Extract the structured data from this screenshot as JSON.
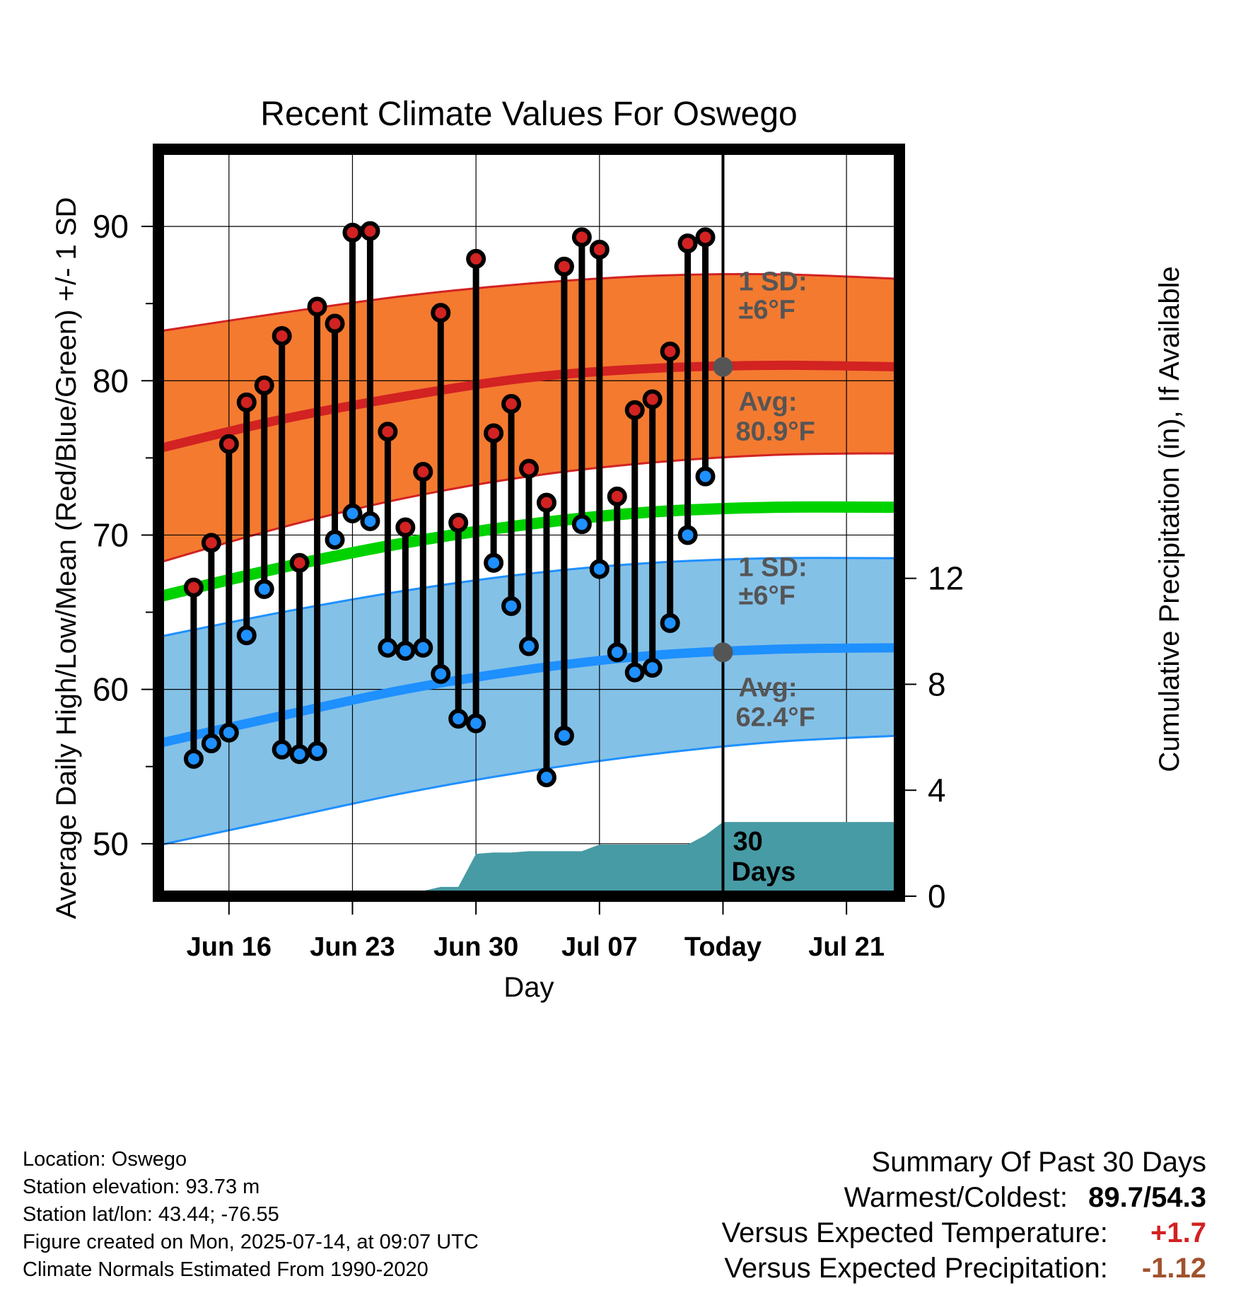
{
  "chart_data": {
    "type": "line",
    "title": "Recent Climate Values For Oswego",
    "xlabel": "Day",
    "ylabel_left": "Average Daily High/Low/Mean (Red/Blue/Green) +/- 1 SD",
    "ylabel_right": "Cumulative Precipitation (in), If Available",
    "ylim_left": [
      46.6,
      95.0
    ],
    "ylim_right": [
      0,
      28.2
    ],
    "yticks_left": [
      50,
      60,
      70,
      80,
      90
    ],
    "yticks_right": [
      0,
      4,
      8,
      12
    ],
    "xlim": [
      "2025-06-12",
      "2025-07-24"
    ],
    "xticks": [
      {
        "date": "2025-06-16",
        "label": "Jun 16"
      },
      {
        "date": "2025-06-23",
        "label": "Jun 23"
      },
      {
        "date": "2025-06-30",
        "label": "Jun 30"
      },
      {
        "date": "2025-07-07",
        "label": "Jul 07"
      },
      {
        "date": "2025-07-14",
        "label": "Today"
      },
      {
        "date": "2025-07-21",
        "label": "Jul 21"
      }
    ],
    "today": "2025-07-14",
    "grid": true,
    "daily": {
      "dates": [
        "2025-06-14",
        "2025-06-15",
        "2025-06-16",
        "2025-06-17",
        "2025-06-18",
        "2025-06-19",
        "2025-06-20",
        "2025-06-21",
        "2025-06-22",
        "2025-06-23",
        "2025-06-24",
        "2025-06-25",
        "2025-06-26",
        "2025-06-27",
        "2025-06-28",
        "2025-06-29",
        "2025-06-30",
        "2025-07-01",
        "2025-07-02",
        "2025-07-03",
        "2025-07-04",
        "2025-07-05",
        "2025-07-06",
        "2025-07-07",
        "2025-07-08",
        "2025-07-09",
        "2025-07-10",
        "2025-07-11",
        "2025-07-12",
        "2025-07-13"
      ],
      "high": [
        66.6,
        69.5,
        75.9,
        78.6,
        79.7,
        82.9,
        68.2,
        84.8,
        83.7,
        89.6,
        89.7,
        76.7,
        70.5,
        74.1,
        84.4,
        70.8,
        87.9,
        76.6,
        78.5,
        74.3,
        72.1,
        87.4,
        89.3,
        88.5,
        72.5,
        78.1,
        78.8,
        81.9,
        88.9,
        89.3
      ],
      "low": [
        55.5,
        56.5,
        57.2,
        63.5,
        66.5,
        56.1,
        55.8,
        56.0,
        69.7,
        71.4,
        70.9,
        62.7,
        62.5,
        62.7,
        61.0,
        58.1,
        57.8,
        68.2,
        65.4,
        62.8,
        54.3,
        57.0,
        70.7,
        67.8,
        62.4,
        61.1,
        61.4,
        64.3,
        70.0,
        73.8
      ]
    },
    "normals": {
      "dates": [
        "2025-06-12",
        "2025-06-19",
        "2025-06-26",
        "2025-07-03",
        "2025-07-10",
        "2025-07-17",
        "2025-07-24"
      ],
      "avg_high": [
        75.6,
        77.5,
        79.0,
        80.2,
        80.8,
        81.0,
        80.9
      ],
      "avg_low": [
        56.5,
        58.3,
        60.0,
        61.3,
        62.2,
        62.6,
        62.7
      ],
      "avg_mean": [
        66.0,
        67.9,
        69.5,
        70.7,
        71.5,
        71.8,
        71.8
      ],
      "high_sd_upper": [
        83.2,
        84.4,
        85.5,
        86.3,
        86.8,
        86.9,
        86.6
      ],
      "high_sd_lower": [
        68.2,
        70.5,
        72.4,
        73.8,
        74.7,
        75.2,
        75.3
      ],
      "low_sd_upper": [
        63.4,
        65.0,
        66.4,
        67.5,
        68.2,
        68.5,
        68.5
      ],
      "low_sd_lower": [
        49.9,
        51.6,
        53.3,
        54.7,
        55.8,
        56.6,
        57.0
      ]
    },
    "precip_cumulative": {
      "dates": [
        "2025-06-12",
        "2025-06-24",
        "2025-06-25",
        "2025-06-26",
        "2025-06-27",
        "2025-06-28",
        "2025-06-29",
        "2025-06-30",
        "2025-07-01",
        "2025-07-02",
        "2025-07-03",
        "2025-07-04",
        "2025-07-05",
        "2025-07-06",
        "2025-07-07",
        "2025-07-08",
        "2025-07-09",
        "2025-07-10",
        "2025-07-11",
        "2025-07-12",
        "2025-07-13",
        "2025-07-14",
        "2025-07-24"
      ],
      "values": [
        0,
        0,
        0.05,
        0.15,
        0.2,
        0.35,
        0.35,
        1.6,
        1.65,
        1.65,
        1.7,
        1.7,
        1.7,
        1.7,
        1.95,
        1.95,
        1.95,
        1.95,
        1.95,
        1.95,
        2.3,
        2.8,
        2.8
      ]
    },
    "annotations": {
      "high_sd_label": "1 SD:",
      "high_sd_value": "±6°F",
      "high_avg_label": "Avg:",
      "high_avg_value": "80.9°F",
      "low_sd_label": "1 SD:",
      "low_sd_value": "±6°F",
      "low_avg_label": "Avg:",
      "low_avg_value": "62.4°F",
      "days_count": "30",
      "days_label": "Days",
      "today_high_avg": 80.9,
      "today_low_avg": 62.4
    },
    "colors": {
      "high_band": "#f47a30",
      "high_line": "#d22222",
      "low_band": "#84c1e7",
      "low_line": "#1e90ff",
      "mean_line": "#00d200",
      "precip_fill": "#479ba5",
      "high_marker": "#d22222",
      "low_marker": "#1e90ff",
      "annotation_text": "#555555"
    }
  },
  "info": {
    "location": "Location: Oswego",
    "elevation": "Station elevation: 93.73 m",
    "latlon": "Station lat/lon: 43.44; -76.55",
    "created": "Figure created on Mon, 2025-07-14, at 09:07 UTC",
    "normals": "Climate Normals Estimated From 1990-2020"
  },
  "summary": {
    "heading": "Summary Of Past 30 Days",
    "warm_cold_label": "Warmest/Coldest:",
    "warm_cold_value": "89.7/54.3",
    "temp_label": "Versus Expected Temperature:",
    "temp_value": "+1.7",
    "temp_color": "#d22222",
    "precip_label": "Versus Expected Precipitation:",
    "precip_value": "-1.12",
    "precip_color": "#a0522d"
  }
}
